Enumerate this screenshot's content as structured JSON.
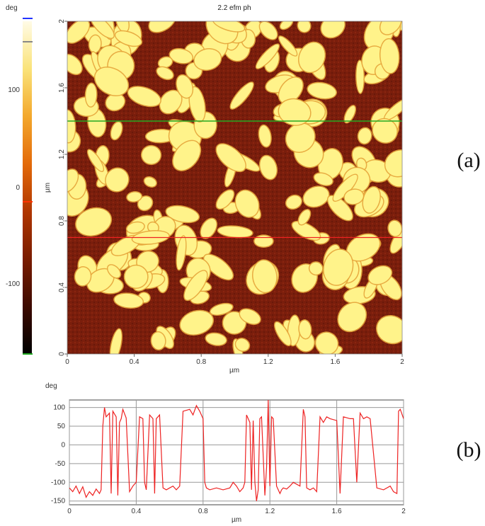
{
  "figure": {
    "panel_a_label": "(a)",
    "panel_b_label": "(b)"
  },
  "colorbar": {
    "unit": "deg",
    "ticks": [
      100,
      0,
      -100
    ],
    "range": [
      -170,
      170
    ],
    "marker_colors": [
      "#2233ff",
      "#888888",
      "#ff3300",
      "#22aa22"
    ],
    "gradient_colors": [
      "#000000",
      "#3d0a00",
      "#7a1c00",
      "#b03600",
      "#e36a0a",
      "#f3a82c",
      "#fae37a",
      "#fffbe6"
    ]
  },
  "image": {
    "title": "2.2 efm ph",
    "xlabel": "µm",
    "ylabel": "µm",
    "x_ticks": [
      "0",
      "0.4",
      "0.8",
      "1.2",
      "1.6",
      "2"
    ],
    "y_ticks": [
      "0",
      "0.4",
      "0.8",
      "1.2",
      "1.6",
      "2"
    ],
    "scan_lines_um": {
      "green": 1.4,
      "red": 0.7
    },
    "colors": {
      "dark": "#7a1e0c",
      "bright": "#fff38a",
      "mid": "#e6a43a"
    }
  },
  "chart_data": {
    "type": "line",
    "title": "",
    "xlabel": "µm",
    "ylabel": "deg",
    "xlim": [
      0,
      2
    ],
    "ylim": [
      -160,
      120
    ],
    "x_ticks": [
      "0",
      "0.4",
      "0.8",
      "1.2",
      "1.6",
      "2"
    ],
    "y_ticks": [
      "100",
      "50",
      "0",
      "-50",
      "-100",
      "-150"
    ],
    "grid": true,
    "series": [
      {
        "color": "#ee2222",
        "x": [
          0,
          0.02,
          0.04,
          0.06,
          0.08,
          0.1,
          0.12,
          0.14,
          0.16,
          0.18,
          0.19,
          0.2,
          0.21,
          0.22,
          0.24,
          0.25,
          0.26,
          0.28,
          0.29,
          0.3,
          0.31,
          0.32,
          0.34,
          0.36,
          0.38,
          0.39,
          0.4,
          0.42,
          0.44,
          0.45,
          0.46,
          0.48,
          0.5,
          0.51,
          0.52,
          0.53,
          0.54,
          0.56,
          0.58,
          0.6,
          0.62,
          0.64,
          0.66,
          0.68,
          0.72,
          0.74,
          0.76,
          0.78,
          0.8,
          0.81,
          0.82,
          0.84,
          0.88,
          0.92,
          0.96,
          0.98,
          1.0,
          1.02,
          1.04,
          1.05,
          1.06,
          1.08,
          1.09,
          1.1,
          1.11,
          1.12,
          1.13,
          1.14,
          1.15,
          1.17,
          1.18,
          1.19,
          1.2,
          1.21,
          1.22,
          1.24,
          1.26,
          1.27,
          1.28,
          1.3,
          1.32,
          1.34,
          1.38,
          1.4,
          1.41,
          1.42,
          1.44,
          1.46,
          1.48,
          1.5,
          1.52,
          1.54,
          1.56,
          1.6,
          1.62,
          1.64,
          1.68,
          1.7,
          1.72,
          1.74,
          1.76,
          1.78,
          1.8,
          1.84,
          1.88,
          1.92,
          1.94,
          1.96,
          1.97,
          1.98,
          2.0
        ],
        "y": [
          -115,
          -125,
          -110,
          -130,
          -112,
          -140,
          -125,
          -135,
          -118,
          -130,
          -120,
          50,
          100,
          75,
          85,
          -130,
          90,
          75,
          -135,
          60,
          70,
          95,
          72,
          -125,
          -110,
          -105,
          -100,
          75,
          70,
          -100,
          -120,
          80,
          70,
          -130,
          70,
          75,
          80,
          -115,
          -120,
          -115,
          -110,
          -120,
          -110,
          90,
          95,
          80,
          105,
          90,
          70,
          -100,
          -115,
          -120,
          -115,
          -120,
          -115,
          -100,
          -110,
          -125,
          -115,
          -100,
          80,
          60,
          -120,
          65,
          -100,
          -150,
          -120,
          70,
          75,
          -135,
          -60,
          120,
          -110,
          75,
          70,
          -110,
          -130,
          -120,
          -115,
          -118,
          -110,
          -100,
          -110,
          95,
          75,
          -115,
          -120,
          -115,
          -125,
          75,
          60,
          75,
          70,
          65,
          -130,
          75,
          70,
          70,
          -100,
          85,
          70,
          75,
          70,
          -115,
          -120,
          -110,
          -125,
          -130,
          90,
          95,
          70
        ]
      }
    ]
  }
}
